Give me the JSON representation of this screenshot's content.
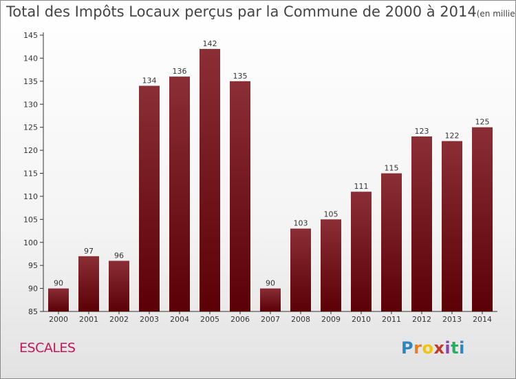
{
  "title": "Total des Impôts Locaux perçus par la Commune de 2000 à 2014",
  "unit_note": "(en milliers d'€)",
  "commune": "ESCALES",
  "logo": {
    "letters": [
      "P",
      "r",
      "o",
      "x",
      "i",
      "t",
      "i"
    ],
    "colors": [
      "#2e86c1",
      "#e67e22",
      "#f1c40f",
      "#c0392b",
      "#8e44ad",
      "#27ae60",
      "#2e86c1"
    ]
  },
  "colors": {
    "bar_top": "#8b2e35",
    "bar_bottom": "#5a0006",
    "axis": "#333333",
    "grid": "#bbbbbb"
  },
  "chart_data": {
    "type": "bar",
    "categories": [
      "2000",
      "2001",
      "2002",
      "2003",
      "2004",
      "2005",
      "2006",
      "2007",
      "2008",
      "2009",
      "2010",
      "2011",
      "2012",
      "2013",
      "2014"
    ],
    "values": [
      90,
      97,
      96,
      134,
      136,
      142,
      135,
      90,
      103,
      105,
      111,
      115,
      123,
      122,
      125
    ],
    "ylim": [
      85,
      145
    ],
    "yticks": [
      85,
      90,
      95,
      100,
      105,
      110,
      115,
      120,
      125,
      130,
      135,
      140,
      145
    ],
    "grid": false,
    "xlabel": "",
    "ylabel": ""
  }
}
